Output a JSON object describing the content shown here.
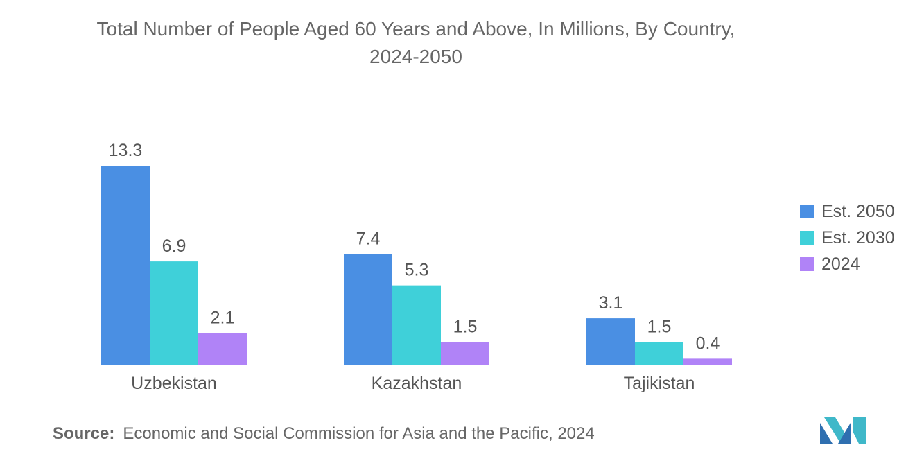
{
  "title_line1": "Total Number of People Aged 60 Years and Above, In Millions, By Country,",
  "title_line2": "2024-2050",
  "source_label": "Source:",
  "source_text": "Economic and Social Commission for Asia and the Pacific, 2024",
  "colors": {
    "Est. 2050": "#4a8fe3",
    "Est. 2030": "#3fd0d9",
    "2024": "#b083f7"
  },
  "chart_data": {
    "type": "bar",
    "title": "Total Number of People Aged 60 Years and Above, In Millions, By Country, 2024-2050",
    "categories": [
      "Uzbekistan",
      "Kazakhstan",
      "Tajikistan"
    ],
    "series": [
      {
        "name": "Est. 2050",
        "values": [
          13.3,
          7.4,
          3.1
        ]
      },
      {
        "name": "Est. 2030",
        "values": [
          6.9,
          5.3,
          1.5
        ]
      },
      {
        "name": "2024",
        "values": [
          2.1,
          1.5,
          0.4
        ]
      }
    ],
    "ylim": [
      0,
      13.3
    ],
    "data_labels": true,
    "grid": false,
    "legend_position": "right"
  }
}
